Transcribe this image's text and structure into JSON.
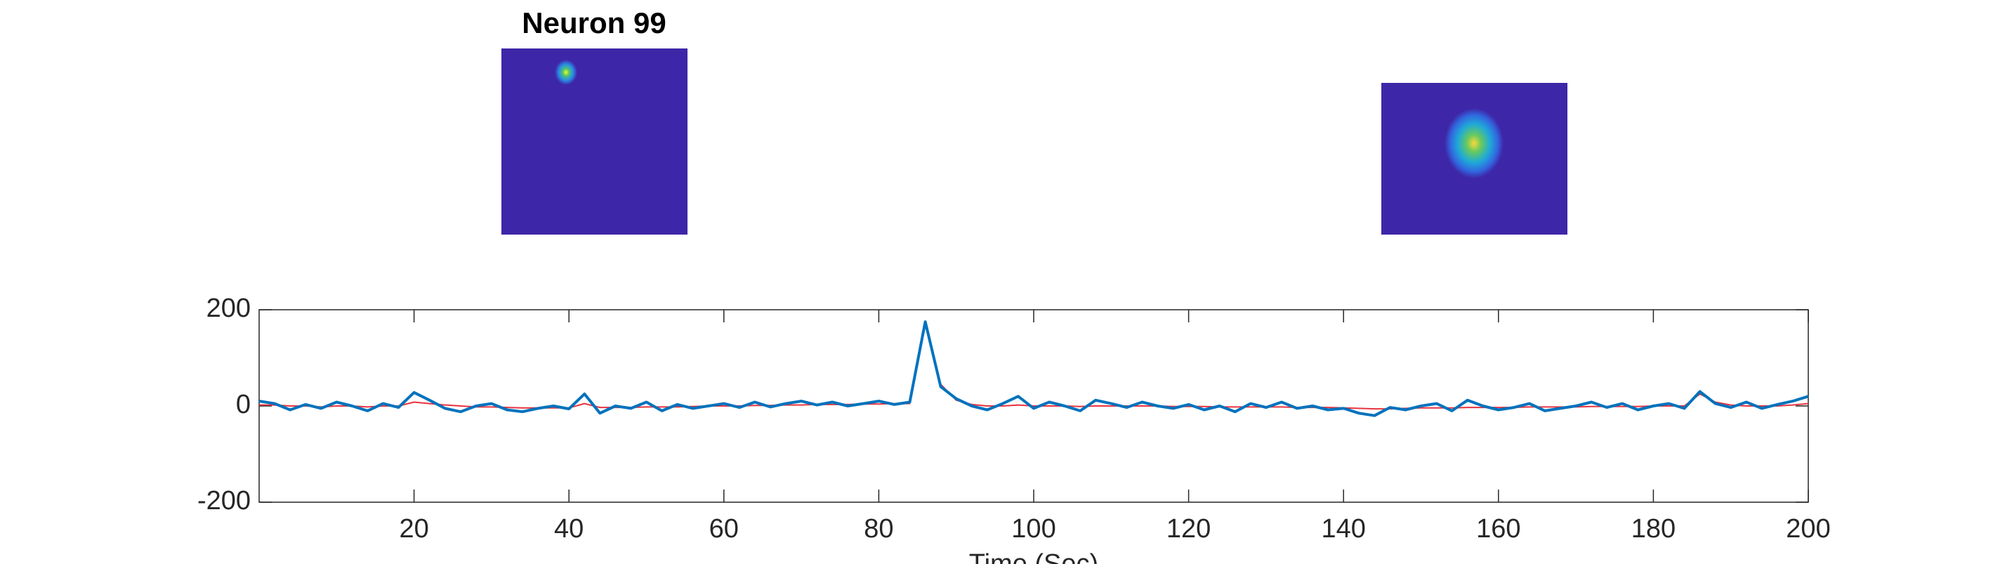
{
  "chart_data": {
    "type": "line",
    "title": "Neuron 99",
    "x_label": "Time (Sec)",
    "x": [
      0,
      2,
      4,
      6,
      8,
      10,
      12,
      14,
      16,
      18,
      20,
      22,
      24,
      26,
      28,
      30,
      32,
      34,
      36,
      38,
      40,
      42,
      44,
      46,
      48,
      50,
      52,
      54,
      56,
      58,
      60,
      62,
      64,
      66,
      68,
      70,
      72,
      74,
      76,
      78,
      80,
      82,
      84,
      86,
      88,
      90,
      92,
      94,
      96,
      98,
      100,
      102,
      104,
      106,
      108,
      110,
      112,
      114,
      116,
      118,
      120,
      122,
      124,
      126,
      128,
      130,
      132,
      134,
      136,
      138,
      140,
      142,
      144,
      146,
      148,
      150,
      152,
      154,
      156,
      158,
      160,
      162,
      164,
      166,
      168,
      170,
      172,
      174,
      176,
      178,
      180,
      182,
      184,
      186,
      188,
      190,
      192,
      194,
      196,
      198,
      200
    ],
    "series": [
      {
        "color": "#e8333f",
        "values": [
          2,
          2,
          0,
          0,
          -2,
          0,
          0,
          -2,
          0,
          0,
          8,
          5,
          2,
          0,
          -2,
          -2,
          -3,
          -4,
          -4,
          -4,
          -4,
          5,
          -3,
          -3,
          -3,
          -2,
          -2,
          -2,
          -1,
          0,
          0,
          0,
          1,
          1,
          2,
          2,
          3,
          3,
          3,
          4,
          4,
          5,
          5,
          170,
          45,
          12,
          3,
          0,
          0,
          2,
          0,
          0,
          0,
          -1,
          0,
          0,
          0,
          0,
          0,
          -1,
          -1,
          -1,
          -2,
          -2,
          -2,
          -2,
          -2,
          -3,
          -3,
          -3,
          -4,
          -5,
          -6,
          -6,
          -5,
          -4,
          -4,
          -4,
          -3,
          -3,
          -3,
          -3,
          -2,
          -2,
          -2,
          -2,
          -1,
          -1,
          -1,
          -1,
          0,
          0,
          0,
          25,
          8,
          2,
          0,
          0,
          0,
          2,
          5
        ]
      },
      {
        "color": "#0072bd",
        "values": [
          10,
          5,
          -8,
          3,
          -5,
          8,
          0,
          -10,
          5,
          -3,
          28,
          12,
          -5,
          -12,
          0,
          5,
          -8,
          -12,
          -5,
          0,
          -6,
          25,
          -15,
          0,
          -5,
          8,
          -10,
          3,
          -5,
          0,
          5,
          -3,
          8,
          -2,
          5,
          10,
          2,
          8,
          0,
          5,
          10,
          3,
          8,
          175,
          40,
          15,
          0,
          -8,
          5,
          20,
          -5,
          8,
          0,
          -10,
          12,
          5,
          -3,
          8,
          0,
          -5,
          3,
          -8,
          0,
          -12,
          5,
          -3,
          8,
          -5,
          0,
          -8,
          -5,
          -15,
          -20,
          -3,
          -8,
          0,
          5,
          -10,
          12,
          0,
          -8,
          -3,
          5,
          -10,
          -5,
          0,
          8,
          -3,
          5,
          -8,
          0,
          5,
          -5,
          30,
          5,
          -3,
          8,
          -5,
          3,
          10,
          20
        ]
      }
    ],
    "xlim": [
      0,
      200
    ],
    "xticks": [
      20,
      40,
      60,
      80,
      100,
      120,
      140,
      160,
      180,
      200
    ],
    "ylim": [
      -200,
      200
    ],
    "yticks": [
      -200,
      0,
      200
    ]
  }
}
